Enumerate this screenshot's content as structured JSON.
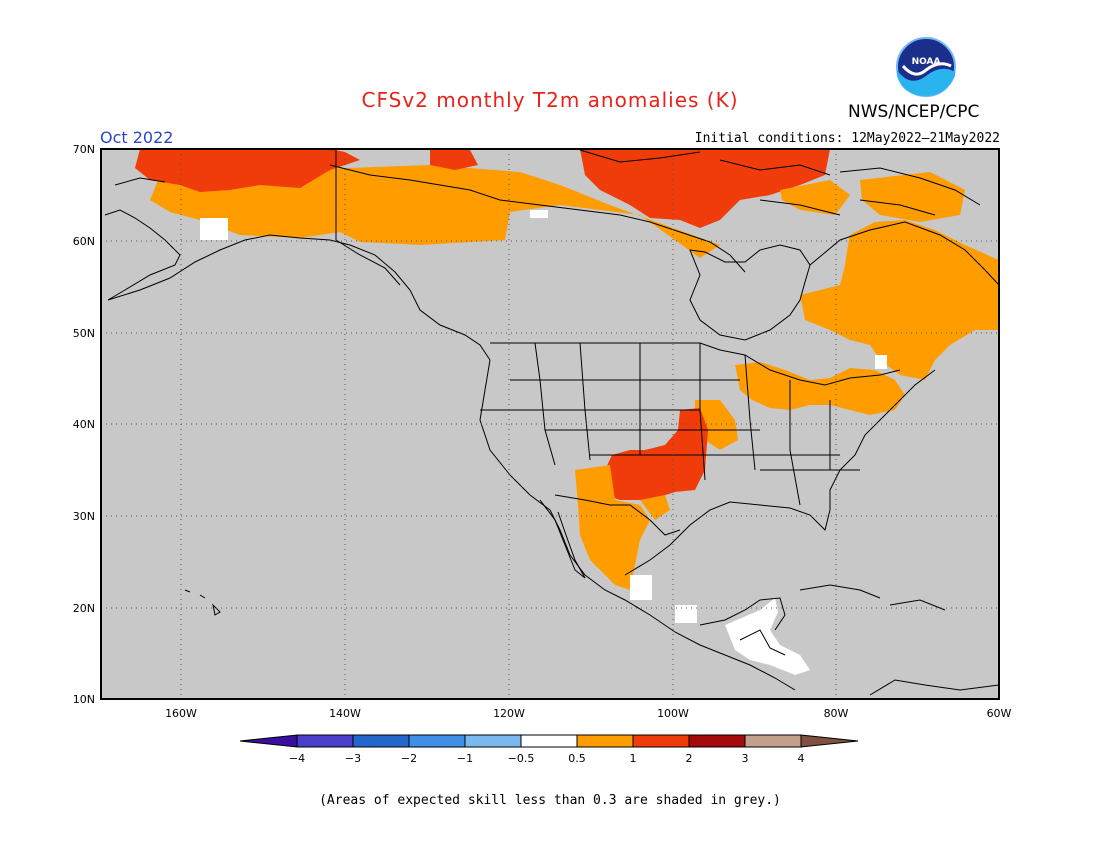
{
  "header": {
    "title": "CFSv2 monthly T2m anomalies (K)",
    "valid_month": "Oct 2022",
    "initial_conditions": "Initial conditions: 12May2022–21May2022",
    "organization": "NWS/NCEP/CPC",
    "logo_text": "NOAA"
  },
  "map": {
    "projection": "lat-lon",
    "lat_range": [
      10,
      70
    ],
    "lon_range": [
      -171,
      -60
    ],
    "background_color": "#c8c8c8",
    "lat_labels": [
      "70N",
      "60N",
      "50N",
      "40N",
      "30N",
      "20N",
      "10N"
    ],
    "lon_labels": [
      "160W",
      "140W",
      "120W",
      "100W",
      "80W",
      "60W"
    ],
    "regions": [
      {
        "name": "alaska-north-slope",
        "category": "1 to 2"
      },
      {
        "name": "yukon-nwt-arctic",
        "category": "0.5 to 1"
      },
      {
        "name": "nunavut-mainland-arctic",
        "category": "1 to 2"
      },
      {
        "name": "quebec-labrador",
        "category": "0.5 to 1"
      },
      {
        "name": "great-lakes-northeast-us",
        "category": "0.5 to 1"
      },
      {
        "name": "southern-plains",
        "category": "1 to 2"
      },
      {
        "name": "southwest-us-northwest-mexico",
        "category": "0.5 to 1"
      },
      {
        "name": "central-america",
        "category": "-0.5 to 0.5"
      }
    ]
  },
  "colorbar": {
    "tick_labels": [
      "−4",
      "−3",
      "−2",
      "−1",
      "−0.5",
      "0.5",
      "1",
      "2",
      "3",
      "4"
    ],
    "colors": [
      "#3a0ea0",
      "#4b3ec8",
      "#2266cc",
      "#3e90e8",
      "#7ab8f0",
      "#ffffff",
      "#ff9c00",
      "#f03c0a",
      "#a50a0a",
      "#c4a08c",
      "#805040"
    ]
  },
  "footer": {
    "note": "(Areas of expected skill less than 0.3 are shaded in grey.)"
  }
}
